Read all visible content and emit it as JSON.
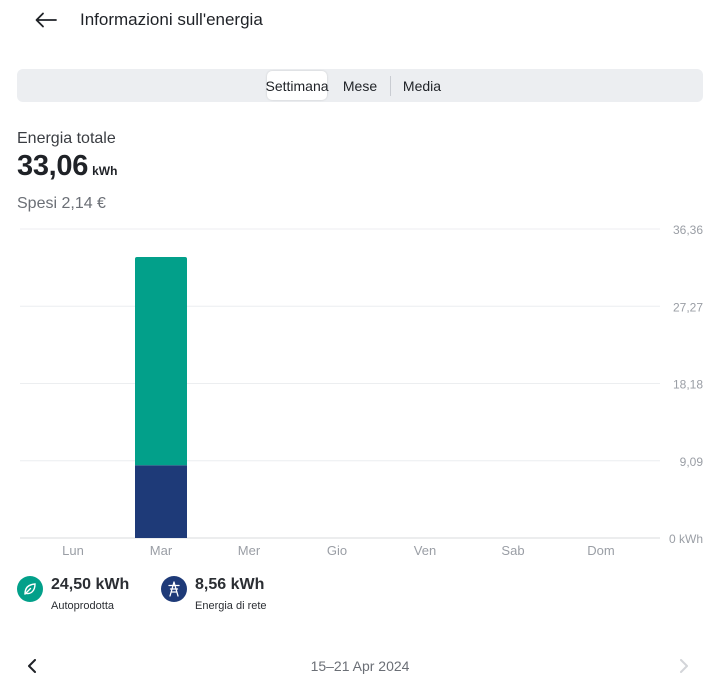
{
  "header": {
    "title": "Informazioni sull'energia",
    "back_icon": "arrow-left-icon"
  },
  "tabs": [
    {
      "label": "Settimana",
      "active": true
    },
    {
      "label": "Mese",
      "active": false
    },
    {
      "label": "Media",
      "active": false
    }
  ],
  "summary": {
    "total_label": "Energia totale",
    "total_value": "33,06",
    "total_unit": "kWh",
    "spent": "Spesi 2,14 €"
  },
  "chart_data": {
    "type": "bar",
    "stacked": true,
    "categories": [
      "Lun",
      "Mar",
      "Mer",
      "Gio",
      "Ven",
      "Sab",
      "Dom"
    ],
    "series": [
      {
        "name": "Energia di rete",
        "color": "#1e3a78",
        "values": [
          0,
          8.56,
          0,
          0,
          0,
          0,
          0
        ]
      },
      {
        "name": "Autoprodotta",
        "color": "#02a08a",
        "values": [
          0,
          24.5,
          0,
          0,
          0,
          0,
          0
        ]
      }
    ],
    "y_ticks": [
      0,
      9.09,
      18.18,
      27.27,
      36.36
    ],
    "y_tick_labels": [
      "0 kWh",
      "9,09",
      "18,18",
      "27,27",
      "36,36"
    ],
    "ylim": [
      0,
      36.36
    ],
    "grid": true,
    "y_axis_side": "right"
  },
  "legend": [
    {
      "value": "24,50 kWh",
      "label": "Autoprodotta",
      "icon": "leaf-icon",
      "color": "#02a08a"
    },
    {
      "value": "8,56 kWh",
      "label": "Energia di rete",
      "icon": "power-pylon-icon",
      "color": "#1e3a78"
    }
  ],
  "footer": {
    "date_range": "15–21 Apr 2024",
    "prev_icon": "chevron-left-icon",
    "next_icon": "chevron-right-icon",
    "next_enabled": false
  }
}
